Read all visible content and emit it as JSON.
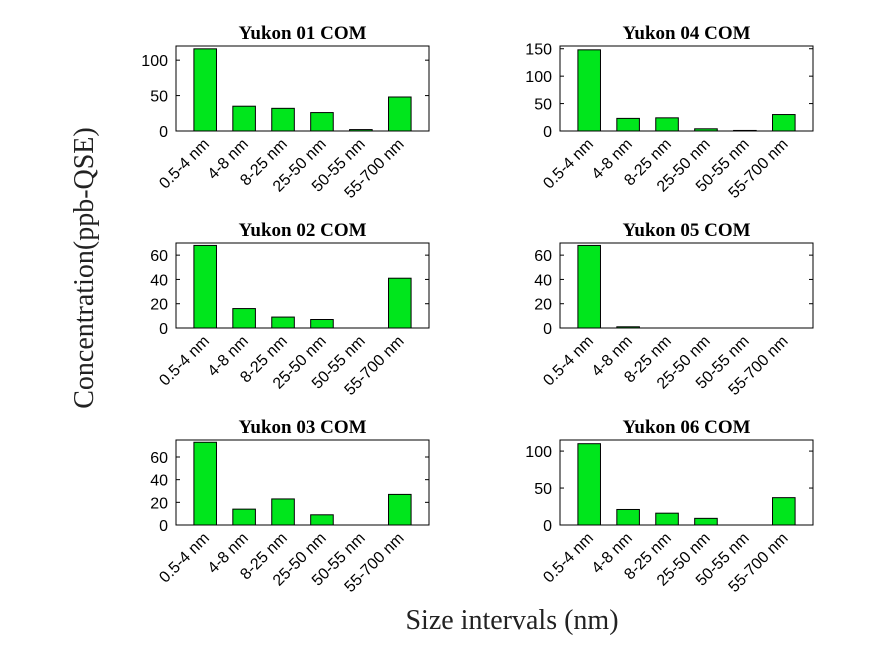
{
  "figure": {
    "ylabel": "Concentration(ppb-QSE)",
    "xlabel": "Size intervals (nm)",
    "bar_color": "#00e61c"
  },
  "chart_data": [
    {
      "type": "bar",
      "title": "Yukon 01 COM",
      "categories": [
        "0.5-4 nm",
        "4-8 nm",
        "8-25 nm",
        "25-50 nm",
        "50-55 nm",
        "55-700 nm"
      ],
      "values": [
        116,
        35,
        32,
        26,
        2,
        48
      ],
      "ylim": [
        0,
        120
      ],
      "yticks": [
        0,
        50,
        100
      ]
    },
    {
      "type": "bar",
      "title": "Yukon 04 COM",
      "categories": [
        "0.5-4 nm",
        "4-8 nm",
        "8-25 nm",
        "25-50 nm",
        "50-55 nm",
        "55-700 nm"
      ],
      "values": [
        148,
        23,
        24,
        4,
        1,
        30
      ],
      "ylim": [
        0,
        155
      ],
      "yticks": [
        0,
        50,
        100,
        150
      ]
    },
    {
      "type": "bar",
      "title": "Yukon 02 COM",
      "categories": [
        "0.5-4 nm",
        "4-8 nm",
        "8-25 nm",
        "25-50 nm",
        "50-55 nm",
        "55-700 nm"
      ],
      "values": [
        68,
        16,
        9,
        7,
        0,
        41
      ],
      "ylim": [
        0,
        70
      ],
      "yticks": [
        0,
        20,
        40,
        60
      ]
    },
    {
      "type": "bar",
      "title": "Yukon 05 COM",
      "categories": [
        "0.5-4 nm",
        "4-8 nm",
        "8-25 nm",
        "25-50 nm",
        "50-55 nm",
        "55-700 nm"
      ],
      "values": [
        68,
        1,
        0,
        0,
        0,
        0
      ],
      "ylim": [
        0,
        70
      ],
      "yticks": [
        0,
        20,
        40,
        60
      ]
    },
    {
      "type": "bar",
      "title": "Yukon 03 COM",
      "categories": [
        "0.5-4 nm",
        "4-8 nm",
        "8-25 nm",
        "25-50 nm",
        "50-55 nm",
        "55-700 nm"
      ],
      "values": [
        73,
        14,
        23,
        9,
        0,
        27
      ],
      "ylim": [
        0,
        75
      ],
      "yticks": [
        0,
        20,
        40,
        60
      ]
    },
    {
      "type": "bar",
      "title": "Yukon 06 COM",
      "categories": [
        "0.5-4 nm",
        "4-8 nm",
        "8-25 nm",
        "25-50 nm",
        "50-55 nm",
        "55-700 nm"
      ],
      "values": [
        110,
        21,
        16,
        9,
        0,
        37
      ],
      "ylim": [
        0,
        115
      ],
      "yticks": [
        0,
        50,
        100
      ]
    }
  ]
}
